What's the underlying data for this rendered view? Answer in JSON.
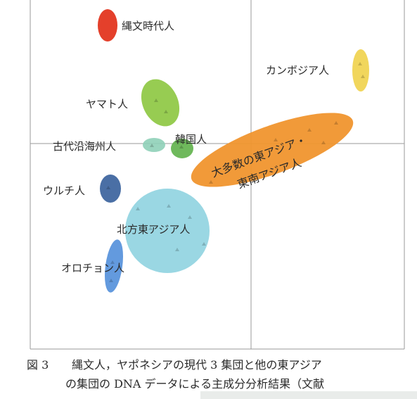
{
  "figure": {
    "caption_label": "図 3",
    "caption_line1": "縄文人，ヤポネシアの現代 3 集団と他の東アジア",
    "caption_line2": "の集団の DNA データによる主成分分析結果（文献"
  },
  "groups": [
    {
      "id": "jomon",
      "label": "縄文時代人",
      "color": "#e4402b"
    },
    {
      "id": "cambodia",
      "label": "カンボジア人",
      "color": "#f0d24a"
    },
    {
      "id": "yamato",
      "label": "ヤマト人",
      "color": "#8cc63f"
    },
    {
      "id": "kankoku",
      "label": "韓国人",
      "color": "#5fb14a"
    },
    {
      "id": "kodai",
      "label": "古代沿海州人",
      "color": "#8fd0b8"
    },
    {
      "id": "east_asia",
      "label": "大多数の東アジア・東南アジア人",
      "label_line1": "大多数の東アジア・",
      "label_line2": "東南アジア人",
      "color": "#f0952e"
    },
    {
      "id": "ulchi",
      "label": "ウルチ人",
      "color": "#4a6fa5"
    },
    {
      "id": "northeast",
      "label": "北方東アジア人",
      "color": "#8fd3e0"
    },
    {
      "id": "oroqen",
      "label": "オロチョン人",
      "color": "#5b95dc"
    }
  ]
}
